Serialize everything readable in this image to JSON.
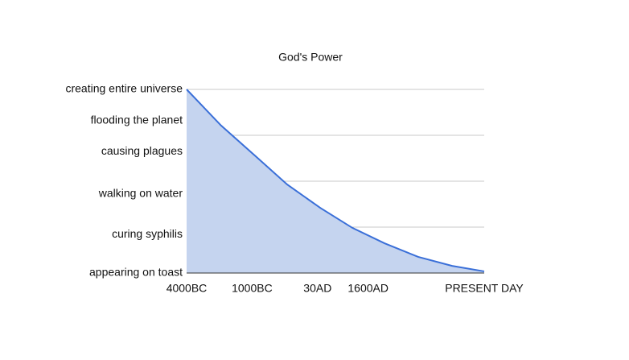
{
  "chart_data": {
    "type": "area",
    "title": "God's Power",
    "x": [
      0,
      11.6,
      23.2,
      33.8,
      44.9,
      55.7,
      66.5,
      77.8,
      89.2,
      100
    ],
    "series": [
      {
        "color": "#3a6fd8",
        "fill": "#c5d4ef",
        "values": [
          100,
          80.3,
          63.6,
          48.2,
          35.5,
          24.6,
          16.2,
          8.8,
          3.9,
          0.9
        ]
      }
    ],
    "xlim": [
      0,
      100
    ],
    "xticks": [
      {
        "value": 0,
        "label": "4000BC"
      },
      {
        "value": 22,
        "label": "1000BC"
      },
      {
        "value": 44,
        "label": "30AD"
      },
      {
        "value": 61,
        "label": "1600AD"
      },
      {
        "value": 100,
        "label": "PRESENT DAY"
      }
    ],
    "ylim": [
      0,
      100
    ],
    "yticks": [
      {
        "value": 100,
        "label": "creating entire universe"
      },
      {
        "value": 83,
        "label": "flooding the planet"
      },
      {
        "value": 66,
        "label": "causing plagues"
      },
      {
        "value": 43,
        "label": "walking on water"
      },
      {
        "value": 21,
        "label": "curing syphilis"
      },
      {
        "value": 0,
        "label": "appearing on toast"
      }
    ],
    "grid_lines": [
      0,
      25,
      50,
      75,
      100
    ],
    "grid": true
  }
}
